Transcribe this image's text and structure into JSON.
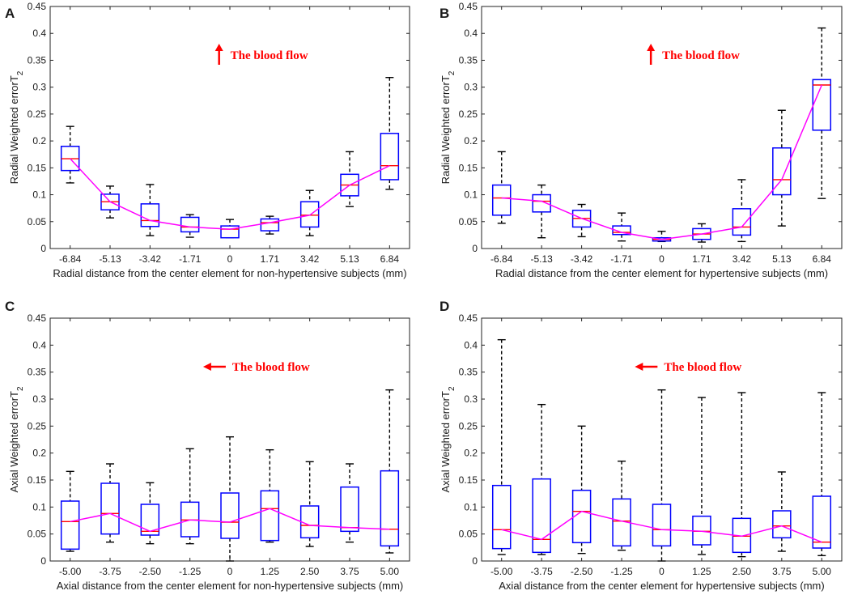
{
  "style": {
    "box_color": "#0000ff",
    "median_color": "#ff0000",
    "trend_color": "#ff00ff",
    "whisker_color": "#000000",
    "annotation_color": "#ff0000"
  },
  "chart_data": [
    {
      "panel": "A",
      "type": "boxplot",
      "ylabel": "Radial Weighted errorT",
      "ylabel_sub": "2",
      "xlabel": "Radial distance from the center element for non-hypertensive subjects (mm)",
      "ylim": [
        0,
        0.45
      ],
      "yticks": [
        "0",
        "0.05",
        "0.1",
        "0.15",
        "0.2",
        "0.25",
        "0.3",
        "0.35",
        "0.4",
        "0.45"
      ],
      "categories": [
        "-6.84",
        "-5.13",
        "-3.42",
        "-1.71",
        "0",
        "1.71",
        "3.42",
        "5.13",
        "6.84"
      ],
      "annotation": {
        "text": "The blood flow",
        "direction": "up"
      },
      "boxes": [
        {
          "min": 0.122,
          "q1": 0.145,
          "median": 0.167,
          "q3": 0.19,
          "max": 0.227
        },
        {
          "min": 0.057,
          "q1": 0.072,
          "median": 0.087,
          "q3": 0.101,
          "max": 0.116
        },
        {
          "min": 0.024,
          "q1": 0.041,
          "median": 0.052,
          "q3": 0.083,
          "max": 0.119
        },
        {
          "min": 0.021,
          "q1": 0.031,
          "median": 0.04,
          "q3": 0.058,
          "max": 0.063
        },
        {
          "min": 0.02,
          "q1": 0.02,
          "median": 0.036,
          "q3": 0.042,
          "max": 0.054
        },
        {
          "min": 0.027,
          "q1": 0.033,
          "median": 0.048,
          "q3": 0.055,
          "max": 0.06
        },
        {
          "min": 0.024,
          "q1": 0.04,
          "median": 0.062,
          "q3": 0.087,
          "max": 0.108
        },
        {
          "min": 0.078,
          "q1": 0.098,
          "median": 0.118,
          "q3": 0.138,
          "max": 0.18
        },
        {
          "min": 0.11,
          "q1": 0.128,
          "median": 0.154,
          "q3": 0.214,
          "max": 0.318
        }
      ]
    },
    {
      "panel": "B",
      "type": "boxplot",
      "ylabel": "Radial Weighted errorT",
      "ylabel_sub": "2",
      "xlabel": "Radial distance from the center element for hypertensive subjects (mm)",
      "ylim": [
        0,
        0.45
      ],
      "yticks": [
        "0",
        "0.05",
        "0.1",
        "0.15",
        "0.2",
        "0.25",
        "0.3",
        "0.35",
        "0.4",
        "0.45"
      ],
      "categories": [
        "-6.84",
        "-5.13",
        "-3.42",
        "-1.71",
        "0",
        "1.71",
        "3.42",
        "5.13",
        "6.84"
      ],
      "annotation": {
        "text": "The blood flow",
        "direction": "up"
      },
      "boxes": [
        {
          "min": 0.047,
          "q1": 0.062,
          "median": 0.094,
          "q3": 0.118,
          "max": 0.18
        },
        {
          "min": 0.02,
          "q1": 0.068,
          "median": 0.088,
          "q3": 0.1,
          "max": 0.118
        },
        {
          "min": 0.022,
          "q1": 0.04,
          "median": 0.056,
          "q3": 0.071,
          "max": 0.082
        },
        {
          "min": 0.014,
          "q1": 0.026,
          "median": 0.03,
          "q3": 0.042,
          "max": 0.066
        },
        {
          "min": 0.013,
          "q1": 0.014,
          "median": 0.017,
          "q3": 0.02,
          "max": 0.032
        },
        {
          "min": 0.012,
          "q1": 0.017,
          "median": 0.027,
          "q3": 0.037,
          "max": 0.046
        },
        {
          "min": 0.013,
          "q1": 0.025,
          "median": 0.04,
          "q3": 0.074,
          "max": 0.128
        },
        {
          "min": 0.042,
          "q1": 0.1,
          "median": 0.128,
          "q3": 0.187,
          "max": 0.257
        },
        {
          "min": 0.093,
          "q1": 0.22,
          "median": 0.304,
          "q3": 0.314,
          "max": 0.41
        }
      ]
    },
    {
      "panel": "C",
      "type": "boxplot",
      "ylabel": "Axial Weighted errorT",
      "ylabel_sub": "2",
      "xlabel": "Axial distance from the center element for non-hypertensive subjects (mm)",
      "ylim": [
        0,
        0.45
      ],
      "yticks": [
        "0",
        "0.05",
        "0.1",
        "0.15",
        "0.2",
        "0.25",
        "0.3",
        "0.35",
        "0.4",
        "0.45"
      ],
      "categories": [
        "-5.00",
        "-3.75",
        "-2.50",
        "-1.25",
        "0",
        "1.25",
        "2.50",
        "3.75",
        "5.00"
      ],
      "annotation": {
        "text": "The blood flow",
        "direction": "left"
      },
      "boxes": [
        {
          "min": 0.018,
          "q1": 0.022,
          "median": 0.073,
          "q3": 0.111,
          "max": 0.166
        },
        {
          "min": 0.035,
          "q1": 0.05,
          "median": 0.088,
          "q3": 0.144,
          "max": 0.18
        },
        {
          "min": 0.032,
          "q1": 0.048,
          "median": 0.055,
          "q3": 0.105,
          "max": 0.145
        },
        {
          "min": 0.032,
          "q1": 0.045,
          "median": 0.076,
          "q3": 0.109,
          "max": 0.208
        },
        {
          "min": 0.0,
          "q1": 0.042,
          "median": 0.072,
          "q3": 0.126,
          "max": 0.23
        },
        {
          "min": 0.035,
          "q1": 0.038,
          "median": 0.097,
          "q3": 0.13,
          "max": 0.206
        },
        {
          "min": 0.027,
          "q1": 0.043,
          "median": 0.066,
          "q3": 0.102,
          "max": 0.184
        },
        {
          "min": 0.035,
          "q1": 0.055,
          "median": 0.062,
          "q3": 0.137,
          "max": 0.18
        },
        {
          "min": 0.015,
          "q1": 0.028,
          "median": 0.059,
          "q3": 0.167,
          "max": 0.317
        }
      ]
    },
    {
      "panel": "D",
      "type": "boxplot",
      "ylabel": "Axial Weighted errorT",
      "ylabel_sub": "2",
      "xlabel": "Axial distance from the center element for hypertensive subjects (mm)",
      "ylim": [
        0,
        0.45
      ],
      "yticks": [
        "0",
        "0.05",
        "0.1",
        "0.15",
        "0.2",
        "0.25",
        "0.3",
        "0.35",
        "0.4",
        "0.45"
      ],
      "categories": [
        "-5.00",
        "-3.75",
        "-2.50",
        "-1.25",
        "0",
        "1.25",
        "2.50",
        "3.75",
        "5.00"
      ],
      "annotation": {
        "text": "The blood flow",
        "direction": "left"
      },
      "boxes": [
        {
          "min": 0.012,
          "q1": 0.023,
          "median": 0.058,
          "q3": 0.14,
          "max": 0.41
        },
        {
          "min": 0.012,
          "q1": 0.016,
          "median": 0.04,
          "q3": 0.152,
          "max": 0.29
        },
        {
          "min": 0.014,
          "q1": 0.034,
          "median": 0.092,
          "q3": 0.131,
          "max": 0.25
        },
        {
          "min": 0.02,
          "q1": 0.028,
          "median": 0.074,
          "q3": 0.115,
          "max": 0.185
        },
        {
          "min": 0.0,
          "q1": 0.028,
          "median": 0.058,
          "q3": 0.105,
          "max": 0.317
        },
        {
          "min": 0.012,
          "q1": 0.03,
          "median": 0.055,
          "q3": 0.083,
          "max": 0.303
        },
        {
          "min": 0.008,
          "q1": 0.016,
          "median": 0.046,
          "q3": 0.079,
          "max": 0.312
        },
        {
          "min": 0.018,
          "q1": 0.043,
          "median": 0.065,
          "q3": 0.093,
          "max": 0.165
        },
        {
          "min": 0.01,
          "q1": 0.024,
          "median": 0.035,
          "q3": 0.12,
          "max": 0.312
        }
      ]
    }
  ]
}
